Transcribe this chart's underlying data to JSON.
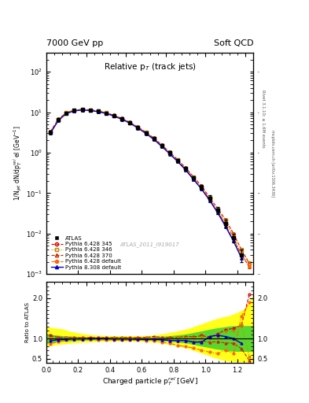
{
  "title_left": "7000 GeV pp",
  "title_right": "Soft QCD",
  "plot_title": "Relative p$_T$ (track jets)",
  "xlabel": "Charged particle p$_T^{rel}$ [GeV]",
  "ylabel_main": "1/N$_{jet}$ dN/dp$_T^{rel}$ el [GeV$^{-1}$]",
  "ylabel_ratio": "Ratio to ATLAS",
  "right_label_top": "Rivet 3.1.10; ≥ 1.6M events",
  "right_label_bot": "mcplots.cern.ch [arXiv:1306.3436]",
  "watermark": "ATLAS_2011_I919017",
  "xlim": [
    0.0,
    1.3
  ],
  "ylim_main": [
    0.001,
    300
  ],
  "ylim_ratio": [
    0.4,
    2.4
  ],
  "atlas_x": [
    0.025,
    0.075,
    0.125,
    0.175,
    0.225,
    0.275,
    0.325,
    0.375,
    0.425,
    0.475,
    0.525,
    0.575,
    0.625,
    0.675,
    0.725,
    0.775,
    0.825,
    0.875,
    0.925,
    0.975,
    1.025,
    1.075,
    1.125,
    1.175,
    1.225
  ],
  "atlas_y": [
    3.2,
    6.5,
    9.5,
    11.0,
    11.5,
    11.2,
    10.5,
    9.5,
    8.2,
    6.8,
    5.5,
    4.2,
    3.1,
    2.2,
    1.5,
    1.0,
    0.65,
    0.4,
    0.24,
    0.14,
    0.075,
    0.038,
    0.018,
    0.008,
    0.003
  ],
  "atlas_yerr": [
    0.3,
    0.4,
    0.5,
    0.5,
    0.5,
    0.5,
    0.4,
    0.4,
    0.35,
    0.3,
    0.25,
    0.2,
    0.15,
    0.12,
    0.1,
    0.07,
    0.05,
    0.035,
    0.025,
    0.018,
    0.012,
    0.008,
    0.004,
    0.002,
    0.001
  ],
  "py345_x": [
    0.025,
    0.075,
    0.125,
    0.175,
    0.225,
    0.275,
    0.325,
    0.375,
    0.425,
    0.475,
    0.525,
    0.575,
    0.625,
    0.675,
    0.725,
    0.775,
    0.825,
    0.875,
    0.925,
    0.975,
    1.025,
    1.075,
    1.125,
    1.175,
    1.225,
    1.275
  ],
  "py345_y": [
    3.3,
    6.7,
    9.8,
    11.2,
    11.7,
    11.4,
    10.7,
    9.7,
    8.4,
    7.0,
    5.6,
    4.3,
    3.2,
    2.3,
    1.55,
    1.02,
    0.67,
    0.42,
    0.25,
    0.15,
    0.078,
    0.042,
    0.022,
    0.01,
    0.004,
    0.0018
  ],
  "py345_ratio": [
    1.07,
    1.03,
    1.03,
    1.02,
    1.02,
    1.02,
    1.02,
    1.02,
    1.02,
    1.03,
    1.02,
    1.02,
    1.03,
    1.05,
    1.03,
    1.02,
    1.03,
    1.05,
    1.04,
    1.07,
    1.04,
    1.11,
    1.22,
    1.25,
    1.33,
    2.1
  ],
  "py345_color": "#dd0000",
  "py345_label": "Pythia 6.428 345",
  "py346_x": [
    0.025,
    0.075,
    0.125,
    0.175,
    0.225,
    0.275,
    0.325,
    0.375,
    0.425,
    0.475,
    0.525,
    0.575,
    0.625,
    0.675,
    0.725,
    0.775,
    0.825,
    0.875,
    0.925,
    0.975,
    1.025,
    1.075,
    1.125,
    1.175,
    1.225,
    1.275
  ],
  "py346_y": [
    3.25,
    6.6,
    9.7,
    11.1,
    11.6,
    11.3,
    10.6,
    9.6,
    8.35,
    6.95,
    5.55,
    4.25,
    3.15,
    2.25,
    1.52,
    1.01,
    0.66,
    0.41,
    0.245,
    0.145,
    0.076,
    0.04,
    0.021,
    0.0095,
    0.004,
    0.0019
  ],
  "py346_ratio": [
    1.02,
    1.01,
    1.02,
    1.01,
    1.01,
    1.01,
    1.01,
    1.01,
    1.02,
    1.02,
    1.01,
    1.01,
    1.02,
    1.02,
    1.01,
    1.01,
    1.02,
    1.02,
    1.02,
    1.04,
    1.01,
    1.05,
    1.17,
    1.19,
    1.33,
    0.55
  ],
  "py346_color": "#bb8800",
  "py346_label": "Pythia 6.428 346",
  "py370_x": [
    0.025,
    0.075,
    0.125,
    0.175,
    0.225,
    0.275,
    0.325,
    0.375,
    0.425,
    0.475,
    0.525,
    0.575,
    0.625,
    0.675,
    0.725,
    0.775,
    0.825,
    0.875,
    0.925,
    0.975,
    1.025,
    1.075,
    1.125,
    1.175,
    1.225,
    1.275
  ],
  "py370_y": [
    3.15,
    6.4,
    9.4,
    10.9,
    11.4,
    11.1,
    10.4,
    9.4,
    8.1,
    6.7,
    5.4,
    4.1,
    3.0,
    2.15,
    1.45,
    0.95,
    0.62,
    0.38,
    0.22,
    0.13,
    0.068,
    0.035,
    0.016,
    0.007,
    0.003,
    0.0015
  ],
  "py370_ratio": [
    0.98,
    0.98,
    0.99,
    0.99,
    0.99,
    0.99,
    0.99,
    0.99,
    0.99,
    0.99,
    0.98,
    0.98,
    0.97,
    0.98,
    0.97,
    0.95,
    0.95,
    0.95,
    0.92,
    0.93,
    0.91,
    0.92,
    0.89,
    0.88,
    0.75,
    0.45
  ],
  "py370_color": "#cc2200",
  "py370_label": "Pythia 6.428 370",
  "pydef_x": [
    0.025,
    0.075,
    0.125,
    0.175,
    0.225,
    0.275,
    0.325,
    0.375,
    0.425,
    0.475,
    0.525,
    0.575,
    0.625,
    0.675,
    0.725,
    0.775,
    0.825,
    0.875,
    0.925,
    0.975,
    1.025,
    1.075,
    1.125,
    1.175,
    1.225,
    1.275
  ],
  "pydef_y": [
    3.2,
    6.55,
    9.6,
    11.05,
    11.55,
    11.25,
    10.55,
    9.55,
    8.25,
    6.85,
    5.5,
    4.2,
    3.1,
    2.2,
    1.48,
    0.97,
    0.63,
    0.39,
    0.23,
    0.135,
    0.07,
    0.036,
    0.018,
    0.0085,
    0.003,
    0.0016
  ],
  "pydef_ratio": [
    0.87,
    0.92,
    0.97,
    0.98,
    0.98,
    0.98,
    0.97,
    0.97,
    0.97,
    0.96,
    0.96,
    0.96,
    0.95,
    0.95,
    0.91,
    0.88,
    0.83,
    0.8,
    0.76,
    0.71,
    0.66,
    0.63,
    0.71,
    0.63,
    1.55,
    1.9
  ],
  "pydef_color": "#ff6600",
  "pydef_label": "Pythia 6.428 default",
  "py8_x": [
    0.025,
    0.075,
    0.125,
    0.175,
    0.225,
    0.275,
    0.325,
    0.375,
    0.425,
    0.475,
    0.525,
    0.575,
    0.625,
    0.675,
    0.725,
    0.775,
    0.825,
    0.875,
    0.925,
    0.975,
    1.025,
    1.075,
    1.125,
    1.175,
    1.225
  ],
  "py8_y": [
    3.0,
    6.2,
    9.2,
    10.8,
    11.3,
    11.0,
    10.3,
    9.3,
    8.0,
    6.65,
    5.35,
    4.05,
    2.98,
    2.12,
    1.42,
    0.93,
    0.6,
    0.37,
    0.215,
    0.125,
    0.066,
    0.033,
    0.015,
    0.0065,
    0.0025
  ],
  "py8_ratio": [
    0.94,
    0.97,
    0.98,
    0.99,
    0.99,
    1.0,
    1.0,
    1.0,
    0.99,
    0.99,
    0.99,
    0.98,
    0.98,
    0.98,
    0.97,
    0.95,
    0.95,
    0.95,
    0.91,
    0.91,
    1.05,
    1.08,
    1.05,
    1.0,
    0.88
  ],
  "py8_color": "#0000cc",
  "py8_label": "Pythia 8.308 default",
  "atlas_color": "#000000",
  "atlas_label": "ATLAS",
  "yellow_band_x": [
    0.0,
    0.05,
    0.1,
    0.15,
    0.2,
    0.25,
    0.3,
    0.35,
    0.4,
    0.45,
    0.5,
    0.55,
    0.6,
    0.65,
    0.7,
    0.75,
    0.8,
    0.85,
    0.9,
    0.95,
    1.0,
    1.05,
    1.1,
    1.15,
    1.2,
    1.25,
    1.3
  ],
  "yellow_band_lo": [
    0.8,
    0.84,
    0.86,
    0.88,
    0.9,
    0.91,
    0.92,
    0.93,
    0.93,
    0.93,
    0.93,
    0.93,
    0.93,
    0.92,
    0.9,
    0.87,
    0.83,
    0.79,
    0.74,
    0.67,
    0.6,
    0.53,
    0.47,
    0.43,
    0.42,
    0.42,
    0.42
  ],
  "yellow_band_hi": [
    1.3,
    1.26,
    1.24,
    1.18,
    1.14,
    1.11,
    1.09,
    1.08,
    1.07,
    1.07,
    1.07,
    1.07,
    1.07,
    1.08,
    1.1,
    1.13,
    1.17,
    1.21,
    1.26,
    1.33,
    1.4,
    1.47,
    1.53,
    1.57,
    1.65,
    1.75,
    2.1
  ],
  "green_band_lo": [
    0.88,
    0.91,
    0.93,
    0.94,
    0.95,
    0.96,
    0.96,
    0.96,
    0.96,
    0.96,
    0.96,
    0.96,
    0.96,
    0.96,
    0.95,
    0.94,
    0.92,
    0.9,
    0.87,
    0.83,
    0.79,
    0.75,
    0.72,
    0.69,
    0.68,
    0.68,
    0.68
  ],
  "green_band_hi": [
    1.12,
    1.09,
    1.07,
    1.06,
    1.05,
    1.04,
    1.04,
    1.04,
    1.04,
    1.04,
    1.04,
    1.04,
    1.04,
    1.04,
    1.05,
    1.06,
    1.08,
    1.1,
    1.13,
    1.17,
    1.21,
    1.25,
    1.28,
    1.31,
    1.32,
    1.32,
    1.32
  ]
}
